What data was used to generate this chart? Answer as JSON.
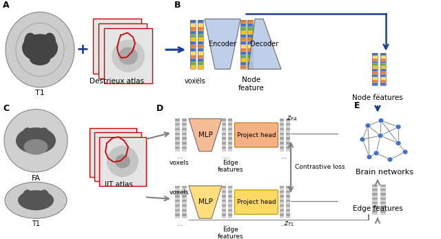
{
  "bg_color": "#ffffff",
  "blue_dark": "#1a3d8f",
  "blue_light": "#b4c7e7",
  "orange_light": "#f4b183",
  "yellow_light": "#ffd966",
  "gray": "#808080",
  "red": "#cc0000",
  "node_blue": "#4472c4",
  "graph_edge_color": "#909090",
  "vox_colors": [
    "#4472c4",
    "#ffd966",
    "#ed7d31",
    "#4472c4",
    "#70ad47",
    "#ffc000",
    "#4472c4",
    "#ed7d31",
    "#4472c4",
    "#ffd966",
    "#ed7d31",
    "#4472c4",
    "#70ad47",
    "#ffc000",
    "#4472c4",
    "#ed7d31"
  ],
  "encoder_label": "Encoder",
  "decoder_label": "Decoder",
  "node_feature_label": "Node\nfeature",
  "node_features_label": "Node features",
  "brain_networks_label": "Brain networks",
  "edge_features_label": "Edge features",
  "voxels_label": "voxels",
  "mlp_label": "MLP",
  "project_head_label": "Project head",
  "contrastive_loss_label": "Contrastive loss",
  "t1_label": "T1",
  "fa_label": "FA",
  "destrieux_label": "Destrieux atlas",
  "iit_label": "IIT atlas",
  "label_A": "A",
  "label_B": "B",
  "label_C": "C",
  "label_D": "D",
  "label_E": "E",
  "z_fa": "$z_{FA}$",
  "z_t1": "$z_{T1}$"
}
